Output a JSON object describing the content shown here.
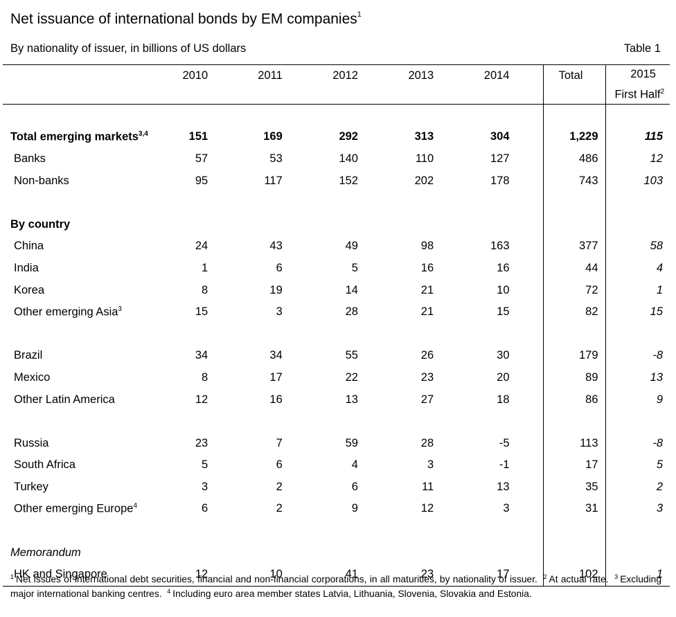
{
  "title": "Net issuance of international bonds by EM companies",
  "title_note": "1",
  "subtitle": "By nationality of issuer, in billions of US dollars",
  "table_label": "Table 1",
  "columns": [
    "2010",
    "2011",
    "2012",
    "2013",
    "2014",
    "Total",
    "2015",
    "First Half"
  ],
  "half_note": "2",
  "rows": {
    "total_em": {
      "label": "Total emerging markets",
      "note": "3,4",
      "values": [
        "151",
        "169",
        "292",
        "313",
        "304",
        "1,229",
        "115"
      ]
    },
    "banks": {
      "label": "Banks",
      "values": [
        "57",
        "53",
        "140",
        "110",
        "127",
        "486",
        "12"
      ]
    },
    "nonbanks": {
      "label": "Non-banks",
      "values": [
        "95",
        "117",
        "152",
        "202",
        "178",
        "743",
        "103"
      ]
    },
    "by_country": {
      "label": "By country"
    },
    "china": {
      "label": "China",
      "values": [
        "24",
        "43",
        "49",
        "98",
        "163",
        "377",
        "58"
      ]
    },
    "india": {
      "label": "India",
      "values": [
        "1",
        "6",
        "5",
        "16",
        "16",
        "44",
        "4"
      ]
    },
    "korea": {
      "label": "Korea",
      "values": [
        "8",
        "19",
        "14",
        "21",
        "10",
        "72",
        "1"
      ]
    },
    "other_asia": {
      "label": "Other emerging Asia",
      "note": "3",
      "values": [
        "15",
        "3",
        "28",
        "21",
        "15",
        "82",
        "15"
      ]
    },
    "brazil": {
      "label": "Brazil",
      "values": [
        "34",
        "34",
        "55",
        "26",
        "30",
        "179",
        "-8"
      ]
    },
    "mexico": {
      "label": "Mexico",
      "values": [
        "8",
        "17",
        "22",
        "23",
        "20",
        "89",
        "13"
      ]
    },
    "other_latam": {
      "label": "Other Latin America",
      "values": [
        "12",
        "16",
        "13",
        "27",
        "18",
        "86",
        "9"
      ]
    },
    "russia": {
      "label": "Russia",
      "values": [
        "23",
        "7",
        "59",
        "28",
        "-5",
        "113",
        "-8"
      ]
    },
    "south_africa": {
      "label": "South Africa",
      "values": [
        "5",
        "6",
        "4",
        "3",
        "-1",
        "17",
        "5"
      ]
    },
    "turkey": {
      "label": "Turkey",
      "values": [
        "3",
        "2",
        "6",
        "11",
        "13",
        "35",
        "2"
      ]
    },
    "other_europe": {
      "label": "Other emerging Europe",
      "note": "4",
      "values": [
        "6",
        "2",
        "9",
        "12",
        "3",
        "31",
        "3"
      ]
    },
    "memorandum": {
      "label": "Memorandum"
    },
    "hk_sg": {
      "label": "HK and Singapore",
      "values": [
        "12",
        "10",
        "41",
        "23",
        "17",
        "102",
        "1"
      ]
    }
  },
  "footnotes": {
    "n1": "1",
    "t1": "Net issues of international debt securities, financial and non-financial corporations, in all maturities, by nationality of issuer.",
    "n2": "2",
    "t2": "At actual rate.",
    "n3": "3",
    "t3": "Excluding major international banking centres.",
    "n4": "4",
    "t4": "Including euro area member states Latvia, Lithuania, Slovenia, Slovakia and Estonia."
  }
}
